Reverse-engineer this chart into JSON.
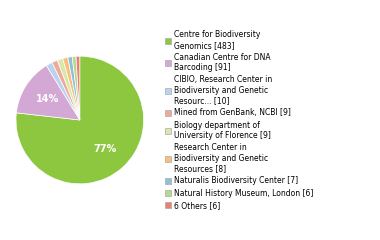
{
  "labels": [
    "Centre for Biodiversity\nGenomics [483]",
    "Canadian Centre for DNA\nBarcoding [91]",
    "CIBIO, Research Center in\nBiodiversity and Genetic\nResourc... [10]",
    "Mined from GenBank, NCBI [9]",
    "Biology department of\nUniversity of Florence [9]",
    "Research Center in\nBiodiversity and Genetic\nResources [8]",
    "Naturalis Biodiversity Center [7]",
    "Natural History Museum, London [6]",
    "6 Others [6]"
  ],
  "values": [
    483,
    91,
    10,
    9,
    9,
    8,
    7,
    6,
    6
  ],
  "colors": [
    "#8dc63f",
    "#d4a8d4",
    "#b8d4f0",
    "#f0a898",
    "#d8e8a8",
    "#f8c080",
    "#90c0d8",
    "#b8d890",
    "#e88070"
  ],
  "autopct_threshold": 5,
  "figsize": [
    3.8,
    2.4
  ],
  "dpi": 100,
  "legend_fontsize": 5.5,
  "pct_fontsize": 7
}
